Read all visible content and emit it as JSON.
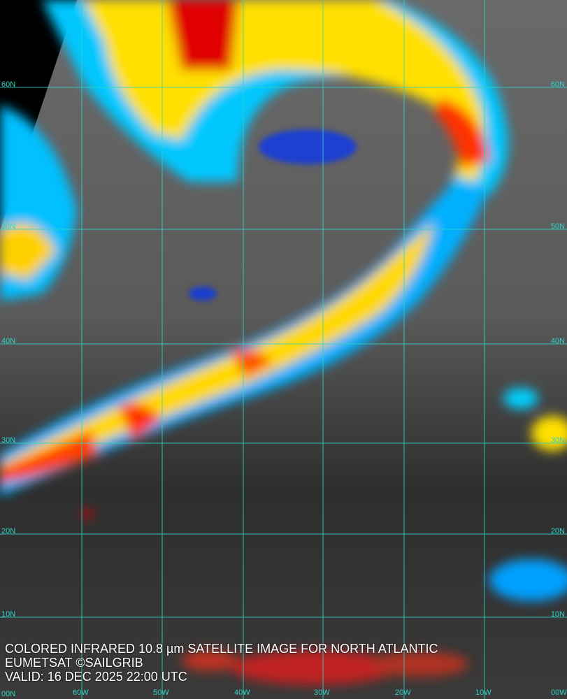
{
  "caption": {
    "line1": "COLORED INFRARED 10.8 µm SATELLITE IMAGE FOR NORTH ATLANTIC",
    "line2": "EUMETSAT ©SAILGRIB",
    "line3": "VALID:  16 DEC 2025 22:00 UTC"
  },
  "grid": {
    "color": "#2fd3c8",
    "lat_labels_left": [
      "60N",
      "50N",
      "40N",
      "30N",
      "20N",
      "10N",
      "00N"
    ],
    "lat_labels_right": [
      "60N",
      "50N",
      "40N",
      "30N",
      "20N",
      "10N"
    ],
    "lon_labels": [
      "60W",
      "50W",
      "40W",
      "30W",
      "20W",
      "10W",
      "00W"
    ]
  },
  "palette": {
    "cold_top": "#e00000",
    "high": "#ffd000",
    "mid": "#00e0ff",
    "low": "#0030ff",
    "clear": "#4a4a4a"
  }
}
